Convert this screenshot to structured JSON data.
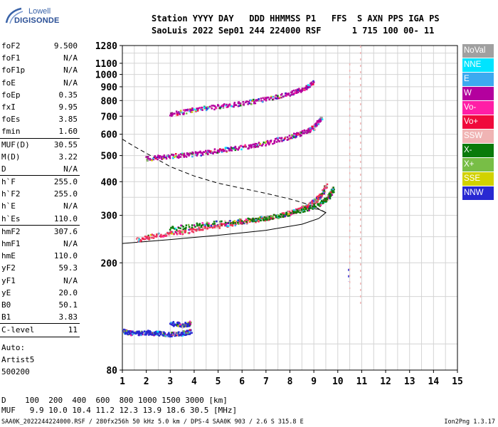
{
  "logo": {
    "line1": "Lowell",
    "line2": "DIGISONDE"
  },
  "header": {
    "line1": "Station YYYY DAY   DDD HHMMSS P1   FFS  S AXN PPS IGA PS",
    "line2": "SaoLuis 2022 Sep01 244 224000 RSF      1 715 100 00- 11"
  },
  "params": [
    {
      "k": "foF2",
      "v": "9.500",
      "sep": false
    },
    {
      "k": "foF1",
      "v": "N/A",
      "sep": false
    },
    {
      "k": "foF1p",
      "v": "N/A",
      "sep": false
    },
    {
      "k": "foE",
      "v": "N/A",
      "sep": false
    },
    {
      "k": "foEp",
      "v": "0.35",
      "sep": false
    },
    {
      "k": "fxI",
      "v": "9.95",
      "sep": false
    },
    {
      "k": "foEs",
      "v": "3.85",
      "sep": false
    },
    {
      "k": "fmin",
      "v": "1.60",
      "sep": true
    },
    {
      "k": "MUF(D)",
      "v": "30.55",
      "sep": false
    },
    {
      "k": "M(D)",
      "v": "3.22",
      "sep": false
    },
    {
      "k": "D",
      "v": "N/A",
      "sep": true
    },
    {
      "k": "h`F",
      "v": "255.0",
      "sep": false
    },
    {
      "k": "h`F2",
      "v": "255.0",
      "sep": false
    },
    {
      "k": "h`E",
      "v": "N/A",
      "sep": false
    },
    {
      "k": "h`Es",
      "v": "110.0",
      "sep": true
    },
    {
      "k": "hmF2",
      "v": "307.6",
      "sep": false
    },
    {
      "k": "hmF1",
      "v": "N/A",
      "sep": false
    },
    {
      "k": "hmE",
      "v": "110.0",
      "sep": false
    },
    {
      "k": "yF2",
      "v": "59.3",
      "sep": false
    },
    {
      "k": "yF1",
      "v": "N/A",
      "sep": false
    },
    {
      "k": "yE",
      "v": "20.0",
      "sep": false
    },
    {
      "k": "B0",
      "v": "50.1",
      "sep": false
    },
    {
      "k": "B1",
      "v": "3.83",
      "sep": true
    },
    {
      "k": "C-level",
      "v": "11",
      "sep": true
    }
  ],
  "auto": [
    "Auto:",
    "Artist5",
    "500200"
  ],
  "legend": [
    {
      "label": "NoVal",
      "color": "#a0a0a0"
    },
    {
      "label": "NNE",
      "color": "#00e4ff"
    },
    {
      "label": "E",
      "color": "#3caaf0"
    },
    {
      "label": "W",
      "color": "#b4009e"
    },
    {
      "label": "Vo-",
      "color": "#ff1ea6"
    },
    {
      "label": "Vo+",
      "color": "#f00a3c"
    },
    {
      "label": "SSW",
      "color": "#f0b4b4"
    },
    {
      "label": "X-",
      "color": "#0a7a0a"
    },
    {
      "label": "X+",
      "color": "#78be46"
    },
    {
      "label": "SSE",
      "color": "#d2d200"
    },
    {
      "label": "NNW",
      "color": "#2828d2"
    }
  ],
  "bottom": {
    "line1": "D    100  200  400  600  800 1000 1500 3000 [km]",
    "line2": "MUF   9.9 10.0 10.4 11.2 12.3 13.9 18.6 30.5 [MHz]"
  },
  "footer": "SAA0K_2022244224000.RSF / 280fx256h 50 kHz 5.0 km / DPS-4 SAA0K 903 / 2.6 S 315.8 E",
  "version": "Ion2Png 1.3.17",
  "chart_data": {
    "type": "scatter",
    "xlabel": "",
    "ylabel": "",
    "xlim": [
      1,
      15
    ],
    "ylim": [
      80,
      1280
    ],
    "x_ticks": [
      1,
      2,
      3,
      4,
      5,
      6,
      7,
      8,
      9,
      10,
      11,
      12,
      13,
      14,
      15
    ],
    "y_ticks": [
      80,
      200,
      300,
      400,
      500,
      600,
      700,
      800,
      900,
      1000,
      1100,
      1280
    ],
    "grid": true,
    "y_scale": "log",
    "traces": [
      {
        "name": "F2 O-trace",
        "color": "#f0325a",
        "x": [
          1.6,
          2.5,
          3.5,
          4.5,
          5.5,
          6.5,
          7.5,
          8.2,
          8.7,
          9.0,
          9.3,
          9.5
        ],
        "y": [
          245,
          255,
          262,
          272,
          280,
          290,
          300,
          312,
          325,
          340,
          360,
          390
        ]
      },
      {
        "name": "F2 X-trace",
        "color": "#0a7a0a",
        "x": [
          3.0,
          4.5,
          6.0,
          7.5,
          8.5,
          9.3,
          9.6,
          9.8
        ],
        "y": [
          270,
          280,
          288,
          300,
          315,
          335,
          355,
          380
        ]
      },
      {
        "name": "2F2 trace",
        "color": "#b4009e",
        "x": [
          2.0,
          3.0,
          4.0,
          5.0,
          6.0,
          7.0,
          8.0,
          8.6,
          9.0,
          9.3
        ],
        "y": [
          490,
          500,
          510,
          525,
          540,
          560,
          590,
          615,
          640,
          700
        ]
      },
      {
        "name": "3F2 trace",
        "color": "#b4009e",
        "x": [
          3.0,
          4.0,
          5.0,
          6.0,
          7.0,
          8.0,
          8.5,
          9.0
        ],
        "y": [
          715,
          745,
          765,
          785,
          815,
          855,
          885,
          940
        ]
      },
      {
        "name": "Es trace",
        "color": "#2828d2",
        "x": [
          1.0,
          1.5,
          2.0,
          2.5,
          3.0,
          3.5,
          3.85
        ],
        "y": [
          112,
          110,
          111,
          110,
          109,
          110,
          112
        ]
      },
      {
        "name": "2Es trace",
        "color": "#2828d2",
        "x": [
          3.0,
          3.5,
          3.85
        ],
        "y": [
          120,
          118,
          120
        ]
      }
    ],
    "profile_solid": {
      "x": [
        1.0,
        3.0,
        5.0,
        7.0,
        8.5,
        9.2,
        9.5,
        9.2,
        8.5
      ],
      "y": [
        236,
        244,
        253,
        264,
        278,
        292,
        307,
        316,
        322
      ]
    },
    "profile_dashed": {
      "x": [
        1.0,
        1.5,
        2.0,
        3.0,
        4.0,
        5.0,
        6.0,
        7.0,
        8.0,
        9.0,
        9.5
      ],
      "y": [
        575,
        540,
        510,
        455,
        420,
        395,
        378,
        362,
        345,
        325,
        307
      ]
    }
  }
}
